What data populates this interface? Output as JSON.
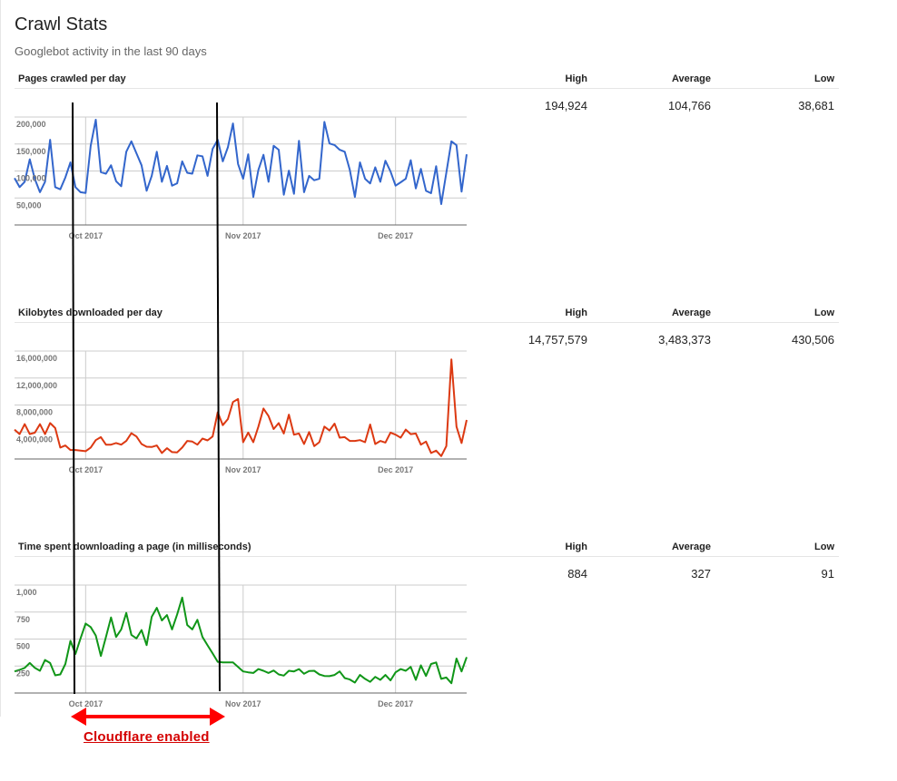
{
  "page": {
    "title": "Crawl Stats",
    "subtitle": "Googlebot activity in the last 90 days",
    "column_headers": [
      "High",
      "Average",
      "Low"
    ]
  },
  "annotation": {
    "label": "Cloudflare enabled",
    "color": "#d40000",
    "marker_color": "#000000"
  },
  "dates": [
    "2017-09-17",
    "2017-09-18",
    "2017-09-19",
    "2017-09-20",
    "2017-09-21",
    "2017-09-22",
    "2017-09-23",
    "2017-09-24",
    "2017-09-25",
    "2017-09-26",
    "2017-09-27",
    "2017-09-28",
    "2017-09-29",
    "2017-09-30",
    "2017-10-01",
    "2017-10-02",
    "2017-10-03",
    "2017-10-04",
    "2017-10-05",
    "2017-10-06",
    "2017-10-07",
    "2017-10-08",
    "2017-10-09",
    "2017-10-10",
    "2017-10-11",
    "2017-10-12",
    "2017-10-13",
    "2017-10-14",
    "2017-10-15",
    "2017-10-16",
    "2017-10-17",
    "2017-10-18",
    "2017-10-19",
    "2017-10-20",
    "2017-10-21",
    "2017-10-22",
    "2017-10-23",
    "2017-10-24",
    "2017-10-25",
    "2017-10-26",
    "2017-10-27",
    "2017-10-28",
    "2017-10-29",
    "2017-10-30",
    "2017-10-31",
    "2017-11-01",
    "2017-11-02",
    "2017-11-03",
    "2017-11-04",
    "2017-11-05",
    "2017-11-06",
    "2017-11-07",
    "2017-11-08",
    "2017-11-09",
    "2017-11-10",
    "2017-11-11",
    "2017-11-12",
    "2017-11-13",
    "2017-11-14",
    "2017-11-15",
    "2017-11-16",
    "2017-11-17",
    "2017-11-18",
    "2017-11-19",
    "2017-11-20",
    "2017-11-21",
    "2017-11-22",
    "2017-11-23",
    "2017-11-24",
    "2017-11-25",
    "2017-11-26",
    "2017-11-27",
    "2017-11-28",
    "2017-11-29",
    "2017-11-30",
    "2017-12-01",
    "2017-12-02",
    "2017-12-03",
    "2017-12-04",
    "2017-12-05",
    "2017-12-06",
    "2017-12-07",
    "2017-12-08",
    "2017-12-09",
    "2017-12-10",
    "2017-12-11",
    "2017-12-12",
    "2017-12-13",
    "2017-12-14",
    "2017-12-15"
  ],
  "chart_data": [
    {
      "type": "line",
      "title": "Pages crawled per day",
      "color": "#3366cc",
      "stats": {
        "high": "194,924",
        "average": "104,766",
        "low": "38,681"
      },
      "ylim": [
        0,
        200000
      ],
      "yticks": [
        {
          "value": 200000,
          "label": "200,000"
        },
        {
          "value": 150000,
          "label": "150,000"
        },
        {
          "value": 100000,
          "label": "100,000"
        },
        {
          "value": 50000,
          "label": "50,000"
        }
      ],
      "xticks": [
        {
          "date": "2017-10-01",
          "label": "Oct 2017"
        },
        {
          "date": "2017-11-01",
          "label": "Nov 2017"
        },
        {
          "date": "2017-12-01",
          "label": "Dec 2017"
        }
      ],
      "grid": true,
      "values": [
        86700,
        70000,
        80000,
        121700,
        85000,
        60600,
        80000,
        157800,
        70000,
        66000,
        88000,
        116000,
        70000,
        60600,
        59400,
        146700,
        194924,
        97800,
        95000,
        110600,
        81000,
        71700,
        135600,
        155000,
        132800,
        110600,
        63300,
        91000,
        135600,
        80000,
        109400,
        72800,
        77200,
        117800,
        96700,
        95000,
        128900,
        127200,
        91000,
        141000,
        157800,
        117800,
        143900,
        188000,
        113000,
        85600,
        131000,
        52000,
        102000,
        130000,
        80000,
        146700,
        139400,
        56000,
        100600,
        57800,
        156000,
        60600,
        91000,
        82800,
        85600,
        191000,
        151000,
        148000,
        139400,
        135600,
        102000,
        52000,
        116000,
        85600,
        77000,
        106700,
        80000,
        119000,
        99400,
        72800,
        79000,
        85600,
        120000,
        67800,
        103900,
        63300,
        58900,
        108900,
        38681,
        96700,
        155000,
        147800,
        61700,
        131000
      ]
    },
    {
      "type": "line",
      "title": "Kilobytes downloaded per day",
      "color": "#dc3912",
      "stats": {
        "high": "14,757,579",
        "average": "3,483,373",
        "low": "430,506"
      },
      "ylim": [
        0,
        16000000
      ],
      "yticks": [
        {
          "value": 16000000,
          "label": "16,000,000"
        },
        {
          "value": 12000000,
          "label": "12,000,000"
        },
        {
          "value": 8000000,
          "label": "8,000,000"
        },
        {
          "value": 4000000,
          "label": "4,000,000"
        }
      ],
      "xticks": [
        {
          "date": "2017-10-01",
          "label": "Oct 2017"
        },
        {
          "date": "2017-11-01",
          "label": "Nov 2017"
        },
        {
          "date": "2017-12-01",
          "label": "Dec 2017"
        }
      ],
      "grid": true,
      "values": [
        4360000,
        3690000,
        5160000,
        3690000,
        3900000,
        5160000,
        3690000,
        5330000,
        4580000,
        1690000,
        2000000,
        1330000,
        1330000,
        1240000,
        1160000,
        1690000,
        2800000,
        3240000,
        2130000,
        2130000,
        2360000,
        2130000,
        2670000,
        3820000,
        3330000,
        2220000,
        1820000,
        1780000,
        2000000,
        890000,
        1600000,
        1020000,
        980000,
        1690000,
        2670000,
        2580000,
        2130000,
        3020000,
        2760000,
        3330000,
        6930000,
        5020000,
        5910000,
        8440000,
        8890000,
        2490000,
        3910000,
        2490000,
        4800000,
        7470000,
        6360000,
        4440000,
        5330000,
        3780000,
        6580000,
        3600000,
        3780000,
        2220000,
        4000000,
        1910000,
        2490000,
        4800000,
        4220000,
        5240000,
        3160000,
        3240000,
        2670000,
        2670000,
        2800000,
        2490000,
        5110000,
        2220000,
        2670000,
        2440000,
        3910000,
        3600000,
        3160000,
        4360000,
        3690000,
        3780000,
        2130000,
        2580000,
        890000,
        1240000,
        430506,
        1910000,
        14757579,
        4800000,
        2360000,
        5780000
      ]
    },
    {
      "type": "line",
      "title": "Time spent downloading a page (in milliseconds)",
      "color": "#109618",
      "stats": {
        "high": "884",
        "average": "327",
        "low": "91"
      },
      "ylim": [
        0,
        1000
      ],
      "yticks": [
        {
          "value": 1000,
          "label": "1,000"
        },
        {
          "value": 750,
          "label": "750"
        },
        {
          "value": 500,
          "label": "500"
        },
        {
          "value": 250,
          "label": "250"
        }
      ],
      "xticks": [
        {
          "date": "2017-10-01",
          "label": "Oct 2017"
        },
        {
          "date": "2017-11-01",
          "label": "Nov 2017"
        },
        {
          "date": "2017-12-01",
          "label": "Dec 2017"
        }
      ],
      "grid": true,
      "values": [
        200,
        214,
        233,
        278,
        233,
        206,
        306,
        278,
        164,
        172,
        269,
        483,
        361,
        506,
        644,
        611,
        533,
        344,
        519,
        700,
        519,
        589,
        742,
        539,
        506,
        583,
        444,
        706,
        789,
        672,
        722,
        589,
        728,
        884,
        630,
        589,
        678,
        519,
        442,
        367,
        289,
        283,
        283,
        283,
        242,
        200,
        192,
        186,
        222,
        206,
        186,
        208,
        172,
        161,
        206,
        200,
        222,
        178,
        203,
        206,
        172,
        158,
        156,
        167,
        200,
        139,
        125,
        97,
        167,
        131,
        103,
        150,
        122,
        167,
        117,
        192,
        222,
        206,
        242,
        122,
        256,
        158,
        269,
        283,
        131,
        144,
        91,
        319,
        200,
        333
      ]
    }
  ]
}
